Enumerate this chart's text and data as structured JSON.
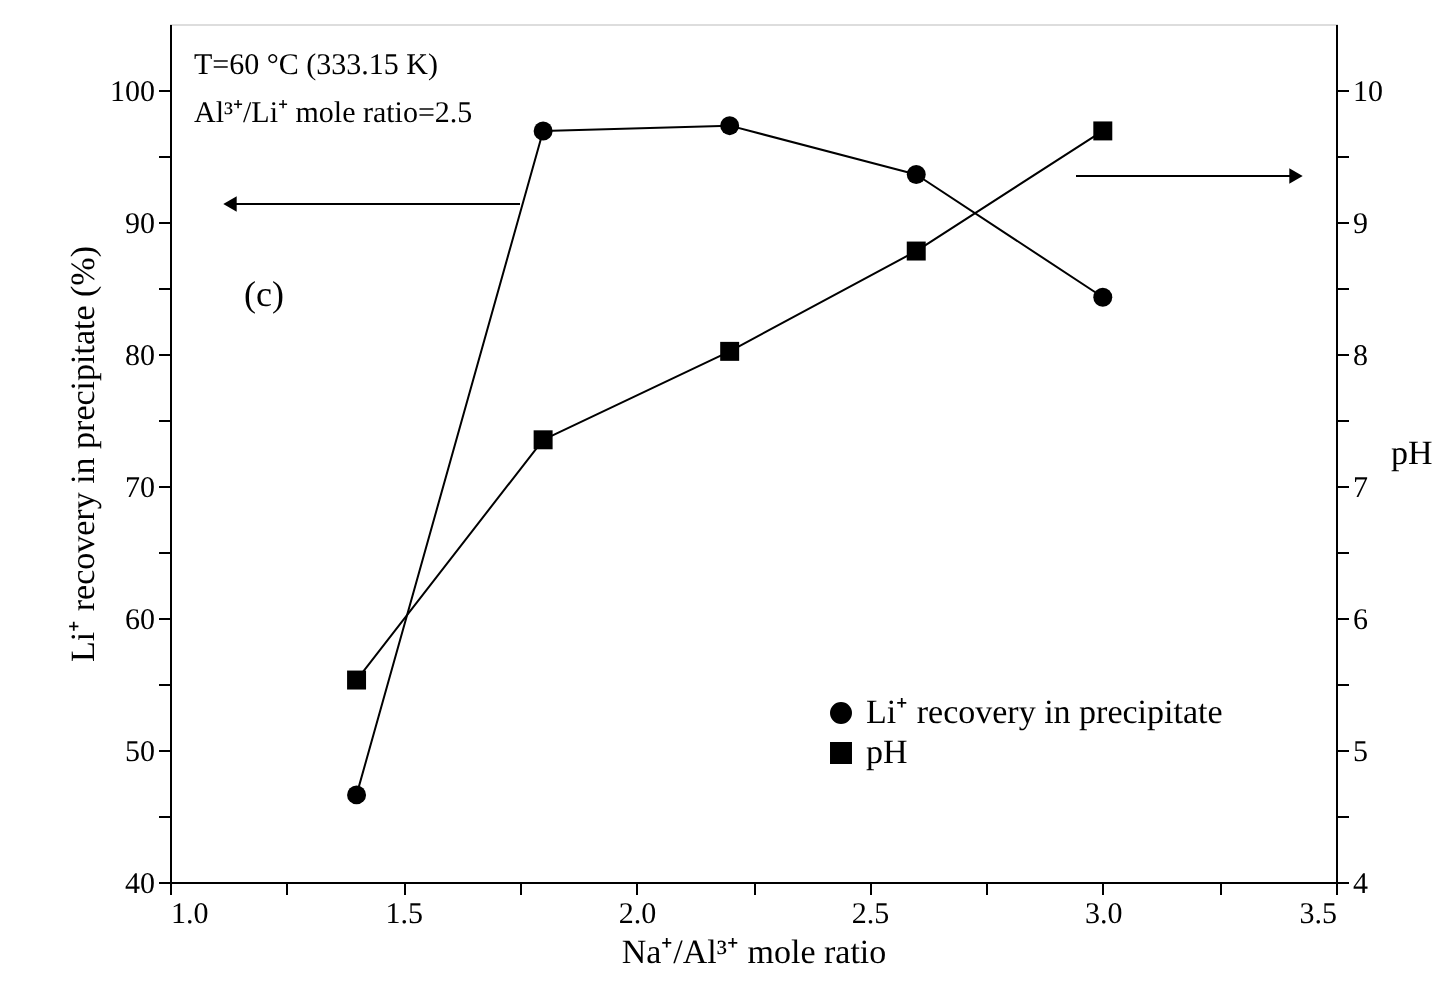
{
  "chart_data": {
    "type": "line",
    "xlabel": "Na⁺/Al³⁺ mole ratio",
    "ylabel": "Li⁺ recovery in precipitate (%)",
    "y2label": "pH",
    "x": [
      1.4,
      1.8,
      2.2,
      2.6,
      3.0
    ],
    "series": [
      {
        "name": "Li⁺ recovery in precipitate",
        "color": "#000000",
        "marker": "circle",
        "values": [
          46.6,
          96.9,
          97.3,
          93.6,
          84.3
        ]
      },
      {
        "name": "pH",
        "color": "#000000",
        "marker": "square",
        "axis": "y2",
        "values": [
          5.53,
          7.35,
          8.02,
          8.78,
          9.69
        ]
      }
    ],
    "xlim": [
      1.0,
      3.5
    ],
    "xticks": [
      {
        "value": 1,
        "label": "1.0"
      },
      {
        "value": 1.25,
        "label": null
      },
      1.5,
      {
        "value": 1.75,
        "label": null
      },
      {
        "value": 2,
        "label": "2.0"
      },
      {
        "value": 2.25,
        "label": null
      },
      2.5,
      {
        "value": 2.75,
        "label": null
      },
      {
        "value": 3,
        "label": "3.0"
      },
      {
        "value": 3.25,
        "label": null
      },
      3.5
    ],
    "ylim": [
      40,
      105
    ],
    "yticks": [
      40,
      {
        "value": 45,
        "label": null
      },
      50,
      {
        "value": 55,
        "label": null
      },
      60,
      {
        "value": 65,
        "label": null
      },
      70,
      {
        "value": 75,
        "label": null
      },
      80,
      {
        "value": 85,
        "label": null
      },
      90,
      {
        "value": 95,
        "label": null
      },
      100
    ],
    "y2lim": [
      4,
      10.5
    ],
    "y2ticks": [
      4,
      {
        "value": 4.5,
        "label": null
      },
      5,
      {
        "value": 5.5,
        "label": null
      },
      6,
      {
        "value": 6.5,
        "label": null
      },
      7,
      {
        "value": 7.5,
        "label": null
      },
      8,
      {
        "value": 8.5,
        "label": null
      },
      9,
      {
        "value": 9.5,
        "label": null
      },
      10
    ],
    "grid": false,
    "legend": "bottom right",
    "line_style": "solid",
    "annotations": [
      "T=60 °C (333.15 K)",
      "Al³⁺/Li⁺ mole ratio=2.5",
      "(c)"
    ]
  }
}
